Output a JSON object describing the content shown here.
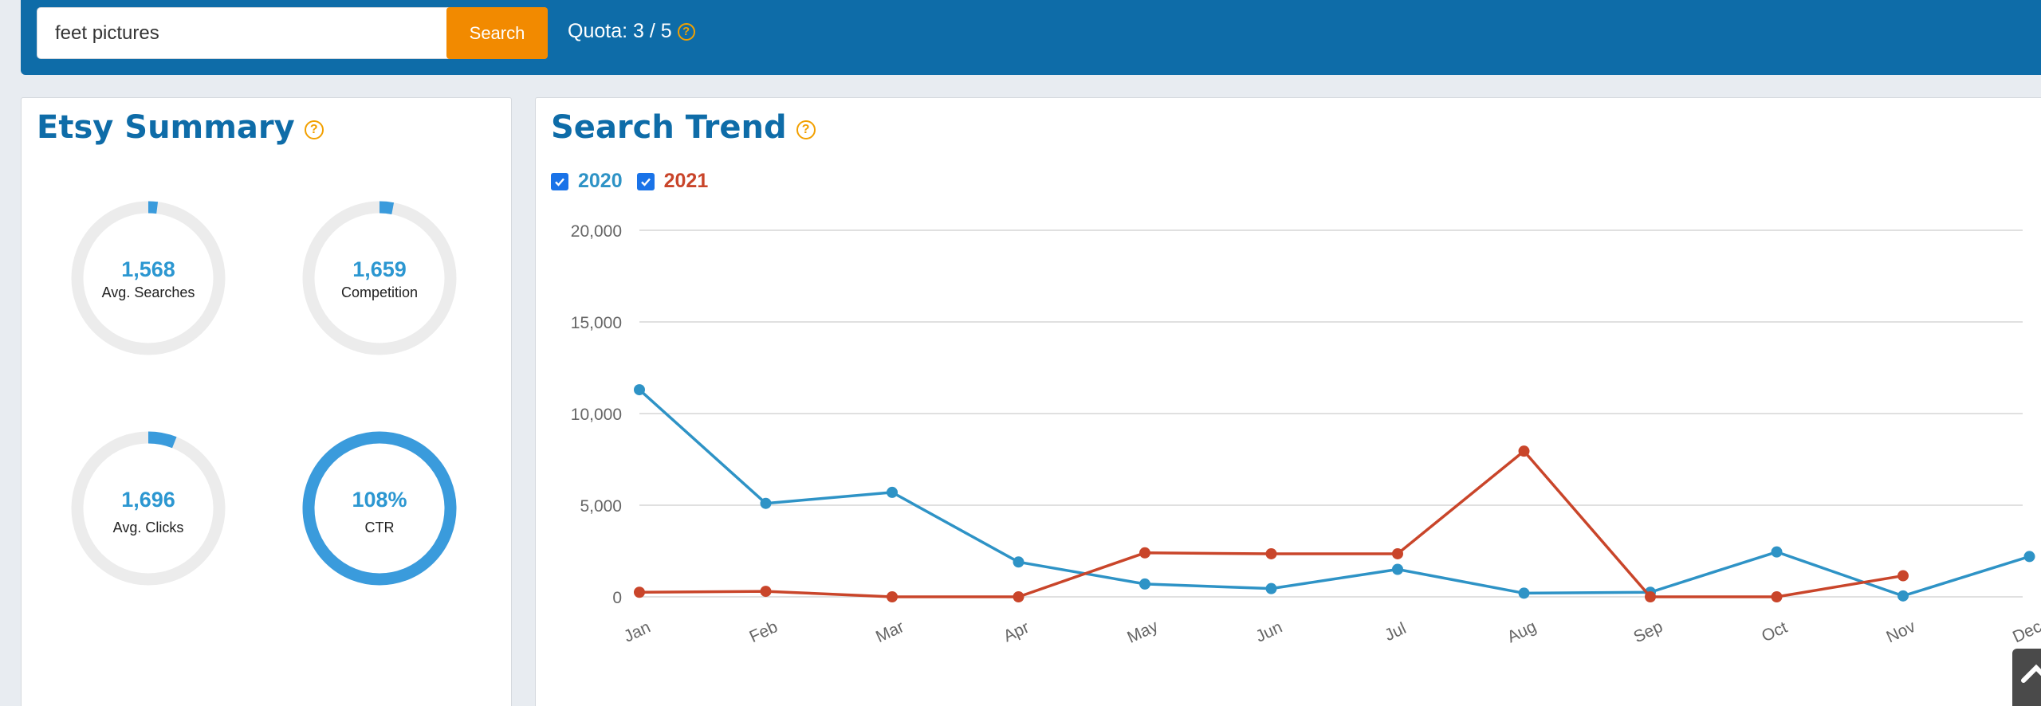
{
  "search": {
    "value": "feet pictures",
    "button_label": "Search"
  },
  "quota": {
    "text": "Quota: 3 / 5",
    "help": "?"
  },
  "summary": {
    "title": "Etsy Summary",
    "help": "?",
    "gauges": [
      {
        "value": "1,568",
        "label": "Avg. Searches",
        "fill": 0.02
      },
      {
        "value": "1,659",
        "label": "Competition",
        "fill": 0.03
      },
      {
        "value": "1,696",
        "label": "Avg. Clicks",
        "fill": 0.06
      },
      {
        "value": "108%",
        "label": "CTR",
        "fill": 1.0
      }
    ]
  },
  "trend": {
    "title": "Search Trend",
    "help": "?",
    "legend": [
      {
        "label": "2020",
        "checked": true,
        "color": "#2e93c6"
      },
      {
        "label": "2021",
        "checked": true,
        "color": "#c9452a"
      }
    ]
  },
  "chart_data": {
    "type": "line",
    "title": "Search Trend",
    "categories": [
      "Jan",
      "Feb",
      "Mar",
      "Apr",
      "May",
      "Jun",
      "Jul",
      "Aug",
      "Sep",
      "Oct",
      "Nov",
      "Dec"
    ],
    "yticks": [
      "0",
      "5,000",
      "10,000",
      "15,000",
      "20,000"
    ],
    "ylim": [
      0,
      20000
    ],
    "grid": true,
    "series": [
      {
        "name": "2020",
        "color": "#2e93c6",
        "values": [
          11300,
          5100,
          5700,
          1900,
          700,
          450,
          1500,
          200,
          250,
          2450,
          50,
          2200
        ]
      },
      {
        "name": "2021",
        "color": "#c9452a",
        "values": [
          250,
          300,
          0,
          0,
          2400,
          2350,
          2350,
          7950,
          0,
          0,
          1150,
          null
        ]
      }
    ]
  },
  "colors": {
    "brand": "#0e6ca8",
    "accent": "#f28a00",
    "gauge": "#3a9bdc",
    "track": "#ececec"
  }
}
